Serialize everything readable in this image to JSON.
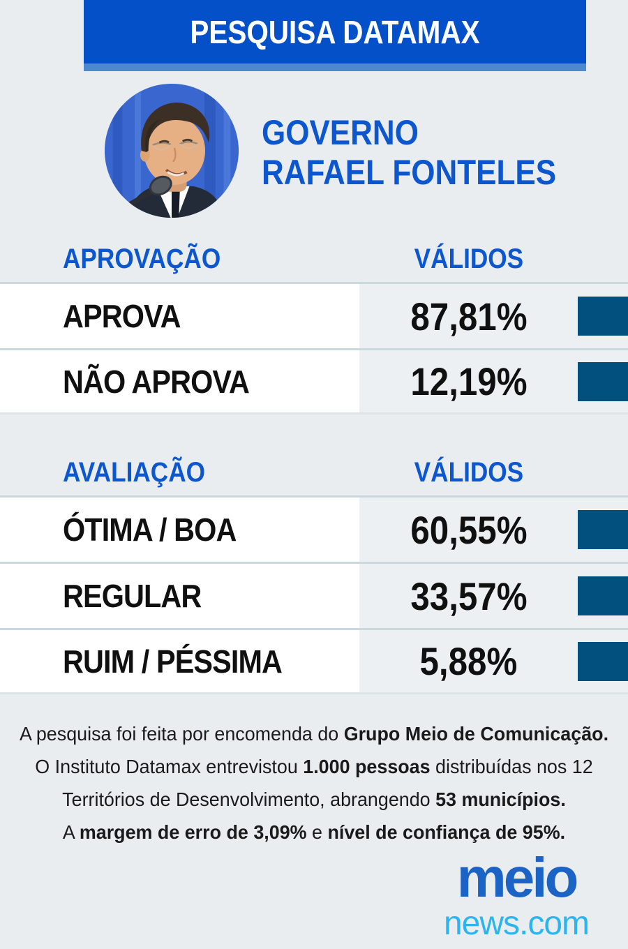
{
  "colors": {
    "banner_blue": "#0350c8",
    "banner_strip": "#4d89cc",
    "background": "#e9edf0",
    "accent_blue": "#0c56ce",
    "square_navy": "#02507e",
    "text_black": "#101010",
    "row_white": "#ffffff",
    "value_panel": "#edf0f2",
    "separator": "#cbd8dd",
    "logo_meio": "#1b63c5",
    "logo_news": "#2ab4f0",
    "banner_text": "#ffffff"
  },
  "header": {
    "title": "PESQUISA DATAMAX"
  },
  "subject": {
    "line1": "GOVERNO",
    "line2": "RAFAEL FONTELES",
    "photo": "rafael-fonteles-portrait"
  },
  "sections": [
    {
      "header": "APROVAÇÃO",
      "values_header": "VÁLIDOS",
      "rows": [
        {
          "label": "APROVA",
          "value": "87,81%"
        },
        {
          "label": "NÃO APROVA",
          "value": "12,19%"
        }
      ]
    },
    {
      "header": "AVALIAÇÃO",
      "values_header": "VÁLIDOS",
      "rows": [
        {
          "label": "ÓTIMA / BOA",
          "value": "60,55%"
        },
        {
          "label": "REGULAR",
          "value": "33,57%"
        },
        {
          "label": "RUIM / PÉSSIMA",
          "value": "5,88%"
        }
      ]
    }
  ],
  "chart_data": [
    {
      "type": "table",
      "title": "APROVAÇÃO",
      "columns": [
        "APROVAÇÃO",
        "VÁLIDOS"
      ],
      "categories": [
        "APROVA",
        "NÃO APROVA"
      ],
      "values": [
        87.81,
        12.19
      ],
      "unit": "%"
    },
    {
      "type": "table",
      "title": "AVALIAÇÃO",
      "columns": [
        "AVALIAÇÃO",
        "VÁLIDOS"
      ],
      "categories": [
        "ÓTIMA / BOA",
        "REGULAR",
        "RUIM / PÉSSIMA"
      ],
      "values": [
        60.55,
        33.57,
        5.88
      ],
      "unit": "%"
    }
  ],
  "footnote": {
    "lines": [
      {
        "segments": [
          {
            "text": "A pesquisa foi feita por encomenda do ",
            "bold": false
          },
          {
            "text": "Grupo Meio de Comunicação.",
            "bold": true
          }
        ]
      },
      {
        "segments": [
          {
            "text": "O Instituto Datamax entrevistou ",
            "bold": false
          },
          {
            "text": "1.000 pessoas",
            "bold": true
          },
          {
            "text": " distribuídas nos 12",
            "bold": false
          }
        ]
      },
      {
        "segments": [
          {
            "text": "Territórios de Desenvolvimento, abrangendo ",
            "bold": false
          },
          {
            "text": "53 municípios.",
            "bold": true
          }
        ]
      },
      {
        "segments": [
          {
            "text": "A ",
            "bold": false
          },
          {
            "text": "margem de erro de 3,09%",
            "bold": true
          },
          {
            "text": " e ",
            "bold": false
          },
          {
            "text": "nível de confiança de 95%.",
            "bold": true
          }
        ]
      }
    ]
  },
  "logo": {
    "top": "meio",
    "bottom": "news.com"
  }
}
